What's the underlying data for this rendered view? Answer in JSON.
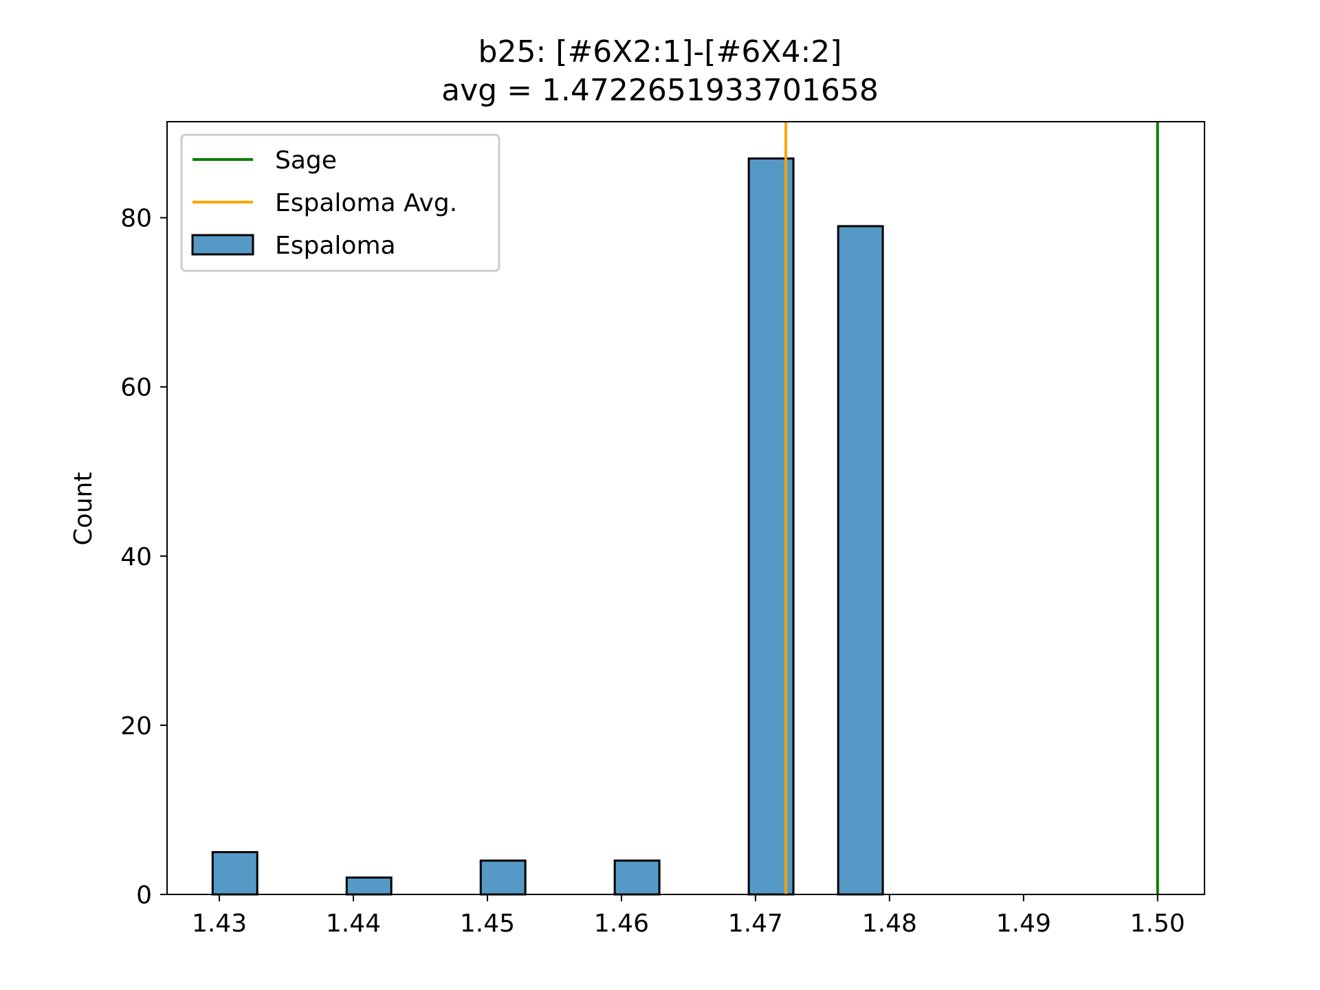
{
  "chart_data": {
    "type": "bar",
    "title": "b25: [#6X2:1]-[#6X4:2]",
    "subtitle": "avg = 1.4722651933701658",
    "xlabel": "",
    "ylabel": "Count",
    "xlim": [
      1.4261,
      1.5035
    ],
    "ylim": [
      0,
      91.35
    ],
    "xticks": [
      1.43,
      1.44,
      1.45,
      1.46,
      1.47,
      1.48,
      1.49,
      1.5
    ],
    "xtick_labels": [
      "1.43",
      "1.44",
      "1.45",
      "1.46",
      "1.47",
      "1.48",
      "1.49",
      "1.50"
    ],
    "yticks": [
      0,
      20,
      40,
      60,
      80
    ],
    "ytick_labels": [
      "0",
      "20",
      "40",
      "60",
      "80"
    ],
    "grid": false,
    "legend_position": "top-left",
    "bin_width": 0.0033333,
    "series": [
      {
        "name": "Espaloma",
        "kind": "histogram",
        "color": "#5599c7",
        "edge_color": "#000000",
        "bins": [
          {
            "x0": 1.4295,
            "x1": 1.43283,
            "count": 5
          },
          {
            "x0": 1.43283,
            "x1": 1.43617,
            "count": 0
          },
          {
            "x0": 1.43617,
            "x1": 1.4395,
            "count": 0
          },
          {
            "x0": 1.4395,
            "x1": 1.44283,
            "count": 2
          },
          {
            "x0": 1.44283,
            "x1": 1.44617,
            "count": 0
          },
          {
            "x0": 1.44617,
            "x1": 1.4495,
            "count": 0
          },
          {
            "x0": 1.4495,
            "x1": 1.45283,
            "count": 4
          },
          {
            "x0": 1.45283,
            "x1": 1.45617,
            "count": 0
          },
          {
            "x0": 1.45617,
            "x1": 1.4595,
            "count": 0
          },
          {
            "x0": 1.4595,
            "x1": 1.46283,
            "count": 4
          },
          {
            "x0": 1.46283,
            "x1": 1.46617,
            "count": 0
          },
          {
            "x0": 1.46617,
            "x1": 1.4695,
            "count": 0
          },
          {
            "x0": 1.4695,
            "x1": 1.47283,
            "count": 87
          },
          {
            "x0": 1.47283,
            "x1": 1.47617,
            "count": 0
          },
          {
            "x0": 1.47617,
            "x1": 1.4795,
            "count": 79
          }
        ]
      },
      {
        "name": "Sage",
        "kind": "vline",
        "color": "#008000",
        "x": 1.5
      },
      {
        "name": "Espaloma Avg.",
        "kind": "vline",
        "color": "#ffa500",
        "x": 1.4722651933701658
      }
    ],
    "legend": [
      {
        "label": "Sage",
        "kind": "line",
        "color": "#008000"
      },
      {
        "label": "Espaloma Avg.",
        "kind": "line",
        "color": "#ffa500"
      },
      {
        "label": "Espaloma",
        "kind": "patch",
        "color": "#5599c7"
      }
    ]
  }
}
